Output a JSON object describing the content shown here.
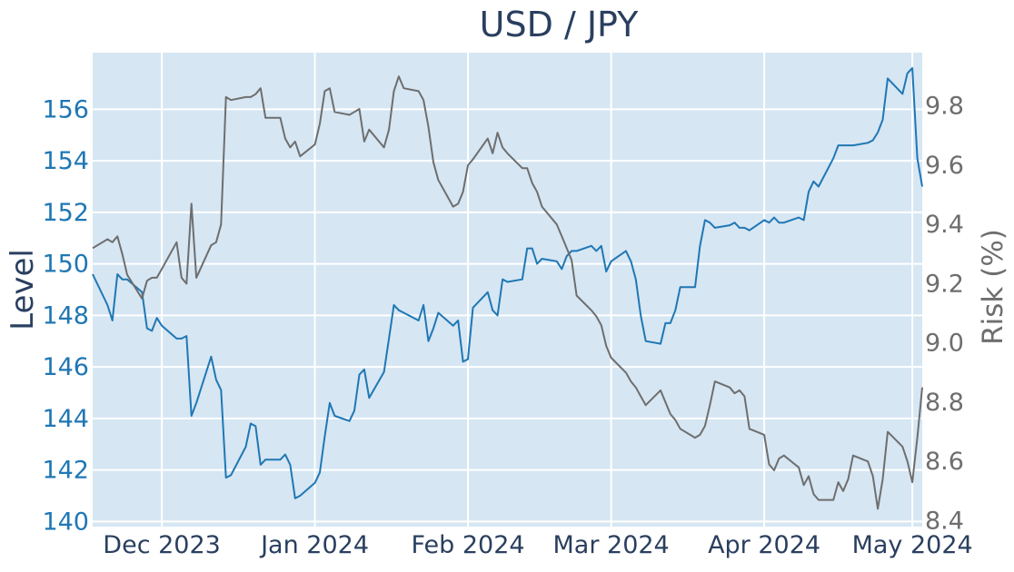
{
  "chart_data": {
    "type": "line",
    "title": "USD / JPY",
    "xlabel": "",
    "ylabel": "Level",
    "y2label": "Risk (%)",
    "x_ticks": [
      {
        "date": "2023-12-01",
        "label": "Dec 2023"
      },
      {
        "date": "2024-01-01",
        "label": "Jan 2024"
      },
      {
        "date": "2024-02-01",
        "label": "Feb 2024"
      },
      {
        "date": "2024-03-01",
        "label": "Mar 2024"
      },
      {
        "date": "2024-04-01",
        "label": "Apr 2024"
      },
      {
        "date": "2024-05-01",
        "label": "May 2024"
      }
    ],
    "xlim": [
      "2023-11-17",
      "2024-05-03"
    ],
    "ylim": [
      139.8,
      158.2
    ],
    "y_ticks": [
      140,
      142,
      144,
      146,
      148,
      150,
      152,
      154,
      156
    ],
    "y2lim": [
      8.38,
      9.98
    ],
    "y2_ticks": [
      8.4,
      8.6,
      8.8,
      9.0,
      9.2,
      9.4,
      9.6,
      9.8
    ],
    "grid": true,
    "colors": {
      "plot_bg": "#d6e6f3",
      "grid": "#ffffff",
      "level": "#1f77b4",
      "risk": "#6e6e6e",
      "text": "#2a3f5f"
    },
    "series": [
      {
        "axis": "left",
        "color": "#1f77b4",
        "points": [
          [
            "2023-11-17",
            149.6
          ],
          [
            "2023-11-20",
            148.4
          ],
          [
            "2023-11-21",
            147.8
          ],
          [
            "2023-11-22",
            149.6
          ],
          [
            "2023-11-23",
            149.4
          ],
          [
            "2023-11-24",
            149.4
          ],
          [
            "2023-11-27",
            148.9
          ],
          [
            "2023-11-28",
            147.5
          ],
          [
            "2023-11-29",
            147.4
          ],
          [
            "2023-11-30",
            147.9
          ],
          [
            "2023-12-01",
            147.6
          ],
          [
            "2023-12-04",
            147.1
          ],
          [
            "2023-12-05",
            147.1
          ],
          [
            "2023-12-06",
            147.2
          ],
          [
            "2023-12-07",
            144.1
          ],
          [
            "2023-12-08",
            144.6
          ],
          [
            "2023-12-11",
            146.4
          ],
          [
            "2023-12-12",
            145.5
          ],
          [
            "2023-12-13",
            145.1
          ],
          [
            "2023-12-14",
            141.7
          ],
          [
            "2023-12-15",
            141.8
          ],
          [
            "2023-12-18",
            142.9
          ],
          [
            "2023-12-19",
            143.8
          ],
          [
            "2023-12-20",
            143.7
          ],
          [
            "2023-12-21",
            142.2
          ],
          [
            "2023-12-22",
            142.4
          ],
          [
            "2023-12-25",
            142.4
          ],
          [
            "2023-12-26",
            142.6
          ],
          [
            "2023-12-27",
            142.2
          ],
          [
            "2023-12-28",
            140.9
          ],
          [
            "2023-12-29",
            141.0
          ],
          [
            "2024-01-01",
            141.5
          ],
          [
            "2024-01-02",
            141.9
          ],
          [
            "2024-01-03",
            143.3
          ],
          [
            "2024-01-04",
            144.6
          ],
          [
            "2024-01-05",
            144.1
          ],
          [
            "2024-01-08",
            143.9
          ],
          [
            "2024-01-09",
            144.3
          ],
          [
            "2024-01-10",
            145.7
          ],
          [
            "2024-01-11",
            145.9
          ],
          [
            "2024-01-12",
            144.8
          ],
          [
            "2024-01-15",
            145.8
          ],
          [
            "2024-01-16",
            147.1
          ],
          [
            "2024-01-17",
            148.4
          ],
          [
            "2024-01-18",
            148.2
          ],
          [
            "2024-01-19",
            148.1
          ],
          [
            "2024-01-22",
            147.8
          ],
          [
            "2024-01-23",
            148.4
          ],
          [
            "2024-01-24",
            147.0
          ],
          [
            "2024-01-25",
            147.5
          ],
          [
            "2024-01-26",
            148.1
          ],
          [
            "2024-01-29",
            147.6
          ],
          [
            "2024-01-30",
            147.8
          ],
          [
            "2024-01-31",
            146.2
          ],
          [
            "2024-02-01",
            146.3
          ],
          [
            "2024-02-02",
            148.3
          ],
          [
            "2024-02-05",
            148.9
          ],
          [
            "2024-02-06",
            148.2
          ],
          [
            "2024-02-07",
            148.0
          ],
          [
            "2024-02-08",
            149.4
          ],
          [
            "2024-02-09",
            149.3
          ],
          [
            "2024-02-12",
            149.4
          ],
          [
            "2024-02-13",
            150.6
          ],
          [
            "2024-02-14",
            150.6
          ],
          [
            "2024-02-15",
            150.0
          ],
          [
            "2024-02-16",
            150.2
          ],
          [
            "2024-02-19",
            150.1
          ],
          [
            "2024-02-20",
            149.8
          ],
          [
            "2024-02-21",
            150.3
          ],
          [
            "2024-02-22",
            150.5
          ],
          [
            "2024-02-23",
            150.5
          ],
          [
            "2024-02-26",
            150.7
          ],
          [
            "2024-02-27",
            150.5
          ],
          [
            "2024-02-28",
            150.7
          ],
          [
            "2024-02-29",
            149.7
          ],
          [
            "2024-03-01",
            150.1
          ],
          [
            "2024-03-04",
            150.5
          ],
          [
            "2024-03-05",
            150.1
          ],
          [
            "2024-03-06",
            149.4
          ],
          [
            "2024-03-07",
            148.0
          ],
          [
            "2024-03-08",
            147.0
          ],
          [
            "2024-03-11",
            146.9
          ],
          [
            "2024-03-12",
            147.7
          ],
          [
            "2024-03-13",
            147.7
          ],
          [
            "2024-03-14",
            148.2
          ],
          [
            "2024-03-15",
            149.1
          ],
          [
            "2024-03-18",
            149.1
          ],
          [
            "2024-03-19",
            150.7
          ],
          [
            "2024-03-20",
            151.7
          ],
          [
            "2024-03-21",
            151.6
          ],
          [
            "2024-03-22",
            151.4
          ],
          [
            "2024-03-25",
            151.5
          ],
          [
            "2024-03-26",
            151.6
          ],
          [
            "2024-03-27",
            151.4
          ],
          [
            "2024-03-28",
            151.4
          ],
          [
            "2024-03-29",
            151.3
          ],
          [
            "2024-04-01",
            151.7
          ],
          [
            "2024-04-02",
            151.6
          ],
          [
            "2024-04-03",
            151.8
          ],
          [
            "2024-04-04",
            151.6
          ],
          [
            "2024-04-05",
            151.6
          ],
          [
            "2024-04-08",
            151.8
          ],
          [
            "2024-04-09",
            151.7
          ],
          [
            "2024-04-10",
            152.8
          ],
          [
            "2024-04-11",
            153.2
          ],
          [
            "2024-04-12",
            153.0
          ],
          [
            "2024-04-15",
            154.1
          ],
          [
            "2024-04-16",
            154.6
          ],
          [
            "2024-04-17",
            154.6
          ],
          [
            "2024-04-18",
            154.6
          ],
          [
            "2024-04-19",
            154.6
          ],
          [
            "2024-04-22",
            154.7
          ],
          [
            "2024-04-23",
            154.8
          ],
          [
            "2024-04-24",
            155.1
          ],
          [
            "2024-04-25",
            155.6
          ],
          [
            "2024-04-26",
            157.2
          ],
          [
            "2024-04-29",
            156.6
          ],
          [
            "2024-04-30",
            157.4
          ],
          [
            "2024-05-01",
            157.6
          ],
          [
            "2024-05-02",
            154.1
          ],
          [
            "2024-05-03",
            153.0
          ]
        ]
      },
      {
        "axis": "right",
        "color": "#6e6e6e",
        "points": [
          [
            "2023-11-17",
            9.32
          ],
          [
            "2023-11-20",
            9.35
          ],
          [
            "2023-11-21",
            9.34
          ],
          [
            "2023-11-22",
            9.36
          ],
          [
            "2023-11-23",
            9.3
          ],
          [
            "2023-11-24",
            9.23
          ],
          [
            "2023-11-27",
            9.15
          ],
          [
            "2023-11-28",
            9.21
          ],
          [
            "2023-11-29",
            9.22
          ],
          [
            "2023-11-30",
            9.22
          ],
          [
            "2023-12-01",
            9.25
          ],
          [
            "2023-12-04",
            9.34
          ],
          [
            "2023-12-05",
            9.22
          ],
          [
            "2023-12-06",
            9.2
          ],
          [
            "2023-12-07",
            9.47
          ],
          [
            "2023-12-08",
            9.22
          ],
          [
            "2023-12-11",
            9.33
          ],
          [
            "2023-12-12",
            9.34
          ],
          [
            "2023-12-13",
            9.4
          ],
          [
            "2023-12-14",
            9.83
          ],
          [
            "2023-12-15",
            9.82
          ],
          [
            "2023-12-18",
            9.83
          ],
          [
            "2023-12-19",
            9.83
          ],
          [
            "2023-12-20",
            9.84
          ],
          [
            "2023-12-21",
            9.86
          ],
          [
            "2023-12-22",
            9.76
          ],
          [
            "2023-12-25",
            9.76
          ],
          [
            "2023-12-26",
            9.69
          ],
          [
            "2023-12-27",
            9.66
          ],
          [
            "2023-12-28",
            9.68
          ],
          [
            "2023-12-29",
            9.63
          ],
          [
            "2024-01-01",
            9.67
          ],
          [
            "2024-01-02",
            9.74
          ],
          [
            "2024-01-03",
            9.85
          ],
          [
            "2024-01-04",
            9.86
          ],
          [
            "2024-01-05",
            9.78
          ],
          [
            "2024-01-08",
            9.77
          ],
          [
            "2024-01-09",
            9.78
          ],
          [
            "2024-01-10",
            9.79
          ],
          [
            "2024-01-11",
            9.68
          ],
          [
            "2024-01-12",
            9.72
          ],
          [
            "2024-01-15",
            9.66
          ],
          [
            "2024-01-16",
            9.72
          ],
          [
            "2024-01-17",
            9.85
          ],
          [
            "2024-01-18",
            9.9
          ],
          [
            "2024-01-19",
            9.86
          ],
          [
            "2024-01-22",
            9.85
          ],
          [
            "2024-01-23",
            9.82
          ],
          [
            "2024-01-24",
            9.73
          ],
          [
            "2024-01-25",
            9.61
          ],
          [
            "2024-01-26",
            9.55
          ],
          [
            "2024-01-29",
            9.46
          ],
          [
            "2024-01-30",
            9.47
          ],
          [
            "2024-01-31",
            9.51
          ],
          [
            "2024-02-01",
            9.6
          ],
          [
            "2024-02-02",
            9.62
          ],
          [
            "2024-02-05",
            9.69
          ],
          [
            "2024-02-06",
            9.64
          ],
          [
            "2024-02-07",
            9.71
          ],
          [
            "2024-02-08",
            9.66
          ],
          [
            "2024-02-09",
            9.64
          ],
          [
            "2024-02-12",
            9.59
          ],
          [
            "2024-02-13",
            9.59
          ],
          [
            "2024-02-14",
            9.54
          ],
          [
            "2024-02-15",
            9.51
          ],
          [
            "2024-02-16",
            9.46
          ],
          [
            "2024-02-19",
            9.4
          ],
          [
            "2024-02-20",
            9.36
          ],
          [
            "2024-02-21",
            9.32
          ],
          [
            "2024-02-22",
            9.28
          ],
          [
            "2024-02-23",
            9.16
          ],
          [
            "2024-02-26",
            9.11
          ],
          [
            "2024-02-27",
            9.09
          ],
          [
            "2024-02-28",
            9.06
          ],
          [
            "2024-02-29",
            8.99
          ],
          [
            "2024-03-01",
            8.95
          ],
          [
            "2024-03-04",
            8.9
          ],
          [
            "2024-03-05",
            8.87
          ],
          [
            "2024-03-06",
            8.85
          ],
          [
            "2024-03-07",
            8.82
          ],
          [
            "2024-03-08",
            8.79
          ],
          [
            "2024-03-11",
            8.84
          ],
          [
            "2024-03-12",
            8.8
          ],
          [
            "2024-03-13",
            8.76
          ],
          [
            "2024-03-14",
            8.74
          ],
          [
            "2024-03-15",
            8.71
          ],
          [
            "2024-03-18",
            8.68
          ],
          [
            "2024-03-19",
            8.69
          ],
          [
            "2024-03-20",
            8.72
          ],
          [
            "2024-03-21",
            8.79
          ],
          [
            "2024-03-22",
            8.87
          ],
          [
            "2024-03-25",
            8.85
          ],
          [
            "2024-03-26",
            8.83
          ],
          [
            "2024-03-27",
            8.84
          ],
          [
            "2024-03-28",
            8.82
          ],
          [
            "2024-03-29",
            8.71
          ],
          [
            "2024-04-01",
            8.69
          ],
          [
            "2024-04-02",
            8.59
          ],
          [
            "2024-04-03",
            8.57
          ],
          [
            "2024-04-04",
            8.61
          ],
          [
            "2024-04-05",
            8.62
          ],
          [
            "2024-04-08",
            8.58
          ],
          [
            "2024-04-09",
            8.52
          ],
          [
            "2024-04-10",
            8.55
          ],
          [
            "2024-04-11",
            8.49
          ],
          [
            "2024-04-12",
            8.47
          ],
          [
            "2024-04-15",
            8.47
          ],
          [
            "2024-04-16",
            8.53
          ],
          [
            "2024-04-17",
            8.5
          ],
          [
            "2024-04-18",
            8.54
          ],
          [
            "2024-04-19",
            8.62
          ],
          [
            "2024-04-22",
            8.6
          ],
          [
            "2024-04-23",
            8.55
          ],
          [
            "2024-04-24",
            8.44
          ],
          [
            "2024-04-25",
            8.54
          ],
          [
            "2024-04-26",
            8.7
          ],
          [
            "2024-04-29",
            8.65
          ],
          [
            "2024-04-30",
            8.6
          ],
          [
            "2024-05-01",
            8.53
          ],
          [
            "2024-05-02",
            8.68
          ],
          [
            "2024-05-03",
            8.85
          ]
        ]
      }
    ]
  }
}
